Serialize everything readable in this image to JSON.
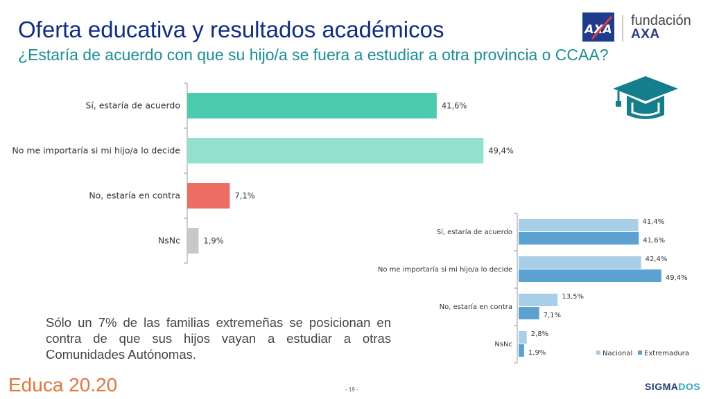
{
  "header": {
    "title": "Oferta educativa y resultados académicos",
    "subtitle": "¿Estaría de acuerdo con que su hijo/a se fuera a estudiar a otra provincia o CCAA?"
  },
  "logo": {
    "line1": "fundación",
    "line2": "AXA",
    "icon": "axa-logo-icon"
  },
  "cap_icon": "graduation-cap-icon",
  "note": "Sólo un 7% de las familias extremeñas se posicionan en contra de que sus hijos vayan a estudiar a otras Comunidades Autónomas.",
  "footer": {
    "brand": "Educa 20.20",
    "page": "- 19 -",
    "sigma_a": "SIGMA",
    "sigma_b": "DOS"
  },
  "chart_data": [
    {
      "type": "bar",
      "orientation": "horizontal",
      "categories": [
        "Sí, estaría de acuerdo",
        "No me importaría si mi hijo/a lo decide",
        "No, estaría en contra",
        "NsNc"
      ],
      "values": [
        41.6,
        49.4,
        7.1,
        1.9
      ],
      "value_labels": [
        "41,6%",
        "49,4%",
        "7,1%",
        "1,9%"
      ],
      "colors": [
        "#4ccbae",
        "#93e0cf",
        "#ec6d62",
        "#c8c8c8"
      ],
      "xlim": [
        0,
        60
      ]
    },
    {
      "type": "bar",
      "orientation": "horizontal",
      "categories": [
        "Sí, estaría de acuerdo",
        "No me importaría si mi hijo/a lo decide",
        "No, estaría en contra",
        "NsNc"
      ],
      "series": [
        {
          "name": "Nacional",
          "values": [
            41.4,
            42.4,
            13.5,
            2.8
          ],
          "labels": [
            "41,4%",
            "42,4%",
            "13,5%",
            "2,8%"
          ],
          "color": "#a9cfe8"
        },
        {
          "name": "Extremadura",
          "values": [
            41.6,
            49.4,
            7.1,
            1.9
          ],
          "labels": [
            "41,6%",
            "49,4%",
            "7,1%",
            "1,9%"
          ],
          "color": "#5ba2d3"
        }
      ],
      "legend": "bottom-right",
      "xlim": [
        0,
        60
      ]
    }
  ]
}
